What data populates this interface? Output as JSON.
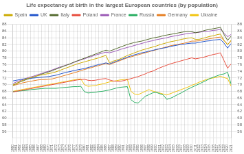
{
  "chart_data": {
    "type": "line",
    "title": "Life expectancy at birth in the largest European countries (by population)",
    "x": [
      1960,
      1961,
      1962,
      1963,
      1964,
      1965,
      1966,
      1967,
      1968,
      1969,
      1970,
      1971,
      1972,
      1973,
      1974,
      1975,
      1976,
      1977,
      1978,
      1979,
      1980,
      1981,
      1982,
      1983,
      1984,
      1985,
      1986,
      1987,
      1988,
      1989,
      1990,
      1991,
      1992,
      1993,
      1994,
      1995,
      1996,
      1997,
      1998,
      1999,
      2000,
      2001,
      2002,
      2003,
      2004,
      2005,
      2006,
      2007,
      2008,
      2009,
      2010,
      2011,
      2012,
      2013,
      2014,
      2015,
      2016,
      2017,
      2018,
      2019,
      2020,
      2021
    ],
    "xlim": [
      1960,
      2021
    ],
    "xticks": [
      1960,
      1961,
      1962,
      1963,
      1964,
      1965,
      1966,
      1967,
      1968,
      1969,
      1970,
      1971,
      1972,
      1973,
      1974,
      1975,
      1976,
      1977,
      1978,
      1979,
      1980,
      1981,
      1982,
      1983,
      1984,
      1985,
      1986,
      1987,
      1988,
      1989,
      1990,
      1991,
      1992,
      1993,
      1994,
      1995,
      1996,
      1997,
      1998,
      1999,
      2000,
      2001,
      2002,
      2003,
      2004,
      2005,
      2006,
      2007,
      2008,
      2009,
      2010,
      2011,
      2012,
      2013,
      2014,
      2015,
      2016,
      2017,
      2018,
      2019,
      2020,
      2021
    ],
    "ylim": [
      54,
      88
    ],
    "yticks": [
      56,
      58,
      60,
      62,
      64,
      66,
      68,
      70,
      72,
      74,
      76,
      78,
      80,
      82,
      84,
      86,
      88
    ],
    "y2lim": [
      54,
      88
    ],
    "y2ticks": [
      56,
      58,
      60,
      62,
      64,
      66,
      68,
      70,
      72,
      74,
      76,
      78,
      80,
      82,
      84,
      86,
      88
    ],
    "grid": true,
    "legend": "upper left",
    "series": [
      {
        "name": "Spain",
        "color": "#CCAA00",
        "values": [
          69.9,
          70.4,
          70.9,
          71.4,
          71.8,
          72.1,
          72.3,
          72.7,
          72.9,
          73.1,
          73.3,
          73.5,
          73.8,
          74.2,
          74.6,
          75.0,
          75.4,
          75.8,
          76.2,
          76.5,
          76.8,
          77.1,
          77.4,
          77.7,
          78.0,
          78.4,
          78.7,
          76.5,
          77.0,
          77.3,
          77.7,
          78.2,
          78.7,
          79.1,
          79.5,
          79.9,
          80.3,
          80.6,
          80.9,
          81.2,
          81.5,
          81.9,
          82.2,
          82.5,
          82.8,
          83.0,
          83.2,
          83.5,
          83.7,
          83.9,
          84.0,
          83.5,
          83.5,
          83.8,
          84.1,
          84.4,
          84.6,
          84.9,
          85.1,
          83.2,
          81.9,
          83.3
        ]
      },
      {
        "name": "UK",
        "color": "#2255CC",
        "values": [
          71.1,
          71.3,
          71.5,
          71.7,
          71.8,
          71.9,
          72.0,
          72.1,
          72.2,
          72.3,
          72.4,
          72.6,
          72.8,
          73.1,
          73.4,
          73.7,
          73.9,
          74.2,
          74.4,
          74.6,
          74.8,
          75.1,
          75.4,
          75.7,
          76.0,
          76.2,
          76.5,
          76.2,
          76.6,
          77.0,
          77.4,
          77.8,
          78.2,
          78.6,
          78.9,
          79.2,
          79.5,
          79.7,
          80.0,
          80.2,
          80.5,
          80.7,
          80.9,
          81.1,
          81.4,
          81.6,
          81.8,
          82.0,
          82.1,
          82.3,
          82.4,
          82.4,
          82.6,
          82.8,
          83.0,
          83.1,
          83.3,
          83.4,
          83.5,
          82.4,
          80.9,
          82.3
        ]
      },
      {
        "name": "Italy",
        "color": "#556B2F",
        "values": [
          69.8,
          70.3,
          70.8,
          71.2,
          71.6,
          71.9,
          72.3,
          72.7,
          73.1,
          73.5,
          73.8,
          74.2,
          74.6,
          75.0,
          75.4,
          75.8,
          76.2,
          76.7,
          77.1,
          77.5,
          77.9,
          78.3,
          78.7,
          79.1,
          79.5,
          79.9,
          80.3,
          80.0,
          80.4,
          80.8,
          81.2,
          81.6,
          82.0,
          82.3,
          82.6,
          82.8,
          83.0,
          83.3,
          83.6,
          83.9,
          84.1,
          84.3,
          84.6,
          84.8,
          85.0,
          85.2,
          85.4,
          85.6,
          85.8,
          85.9,
          85.8,
          85.5,
          85.7,
          86.0,
          86.3,
          86.5,
          86.7,
          86.9,
          87.1,
          85.0,
          83.2,
          84.5
        ]
      },
      {
        "name": "Poland",
        "color": "#E74C3C",
        "values": [
          67.8,
          68.0,
          68.2,
          68.4,
          68.6,
          68.8,
          69.0,
          69.2,
          69.4,
          69.6,
          69.8,
          70.0,
          70.2,
          70.4,
          70.6,
          70.8,
          71.0,
          71.2,
          71.4,
          71.5,
          71.6,
          71.3,
          71.2,
          71.3,
          71.5,
          71.7,
          71.8,
          71.4,
          71.1,
          71.0,
          71.0,
          71.2,
          71.5,
          71.8,
          72.1,
          72.4,
          72.8,
          73.2,
          73.7,
          74.0,
          74.5,
          75.0,
          75.4,
          75.8,
          76.2,
          76.5,
          76.8,
          77.1,
          77.4,
          77.7,
          78.0,
          77.7,
          77.9,
          78.1,
          78.4,
          78.7,
          79.0,
          79.2,
          79.5,
          77.2,
          74.9,
          76.2
        ]
      },
      {
        "name": "France",
        "color": "#9B59B6",
        "values": [
          70.3,
          70.8,
          71.2,
          71.6,
          72.0,
          72.3,
          72.6,
          73.0,
          73.3,
          73.7,
          74.0,
          74.4,
          74.8,
          75.2,
          75.5,
          75.9,
          76.2,
          76.6,
          77.0,
          77.4,
          77.7,
          78.1,
          78.4,
          78.8,
          79.1,
          79.4,
          79.7,
          79.5,
          79.8,
          80.1,
          80.5,
          80.8,
          81.1,
          81.4,
          81.7,
          82.0,
          82.3,
          82.6,
          82.9,
          83.1,
          83.4,
          83.6,
          83.8,
          84.0,
          84.3,
          84.5,
          84.7,
          84.9,
          85.1,
          85.3,
          85.4,
          85.5,
          85.6,
          85.8,
          85.9,
          86.0,
          86.2,
          86.3,
          86.5,
          85.4,
          84.3,
          85.0
        ]
      },
      {
        "name": "Russia",
        "color": "#27AE60",
        "values": [
          67.9,
          68.0,
          68.1,
          68.2,
          68.3,
          68.5,
          68.6,
          68.7,
          68.8,
          68.9,
          68.9,
          68.9,
          68.9,
          69.0,
          69.1,
          69.2,
          69.3,
          69.4,
          69.4,
          69.5,
          67.9,
          67.5,
          67.6,
          67.7,
          67.9,
          68.0,
          68.2,
          68.4,
          68.7,
          69.0,
          69.2,
          69.3,
          69.4,
          65.5,
          64.7,
          64.5,
          65.5,
          66.5,
          67.0,
          67.5,
          67.7,
          67.3,
          66.9,
          65.6,
          65.9,
          66.4,
          67.0,
          67.5,
          68.1,
          68.7,
          69.2,
          69.7,
          70.2,
          70.7,
          71.2,
          71.8,
          72.2,
          72.6,
          73.0,
          73.2,
          73.7,
          70.1
        ]
      },
      {
        "name": "Germany",
        "color": "#E67E22",
        "values": [
          69.7,
          70.0,
          70.3,
          70.6,
          70.8,
          71.0,
          71.2,
          71.4,
          71.5,
          71.5,
          71.6,
          71.7,
          72.0,
          72.3,
          72.6,
          72.9,
          73.2,
          73.5,
          73.8,
          74.2,
          74.5,
          74.8,
          75.1,
          75.4,
          75.7,
          76.0,
          76.3,
          76.0,
          76.4,
          76.8,
          77.2,
          77.6,
          78.0,
          78.3,
          78.6,
          78.9,
          79.2,
          79.5,
          79.8,
          80.1,
          80.4,
          80.7,
          81.0,
          81.3,
          81.6,
          81.8,
          82.0,
          82.2,
          82.4,
          82.7,
          83.0,
          83.0,
          83.1,
          83.3,
          83.5,
          83.7,
          83.9,
          84.1,
          84.2,
          83.2,
          82.0,
          83.0
        ]
      },
      {
        "name": "Ukraine",
        "color": "#F1C40F",
        "values": [
          68.0,
          68.2,
          68.4,
          68.6,
          68.8,
          69.0,
          69.2,
          69.4,
          69.6,
          69.8,
          70.0,
          70.2,
          70.4,
          70.6,
          70.8,
          71.0,
          71.2,
          71.4,
          71.6,
          71.7,
          70.0,
          69.5,
          69.6,
          69.7,
          70.0,
          70.2,
          70.5,
          70.8,
          71.0,
          71.2,
          71.4,
          71.5,
          71.6,
          68.0,
          67.2,
          67.0,
          67.5,
          68.0,
          68.5,
          68.1,
          67.8,
          67.5,
          67.2,
          66.9,
          67.3,
          67.7,
          68.1,
          68.5,
          68.9,
          69.3,
          69.8,
          70.2,
          70.7,
          71.1,
          71.5,
          71.8,
          72.0,
          72.2,
          72.5,
          72.1,
          71.8,
          69.5
        ]
      }
    ]
  }
}
